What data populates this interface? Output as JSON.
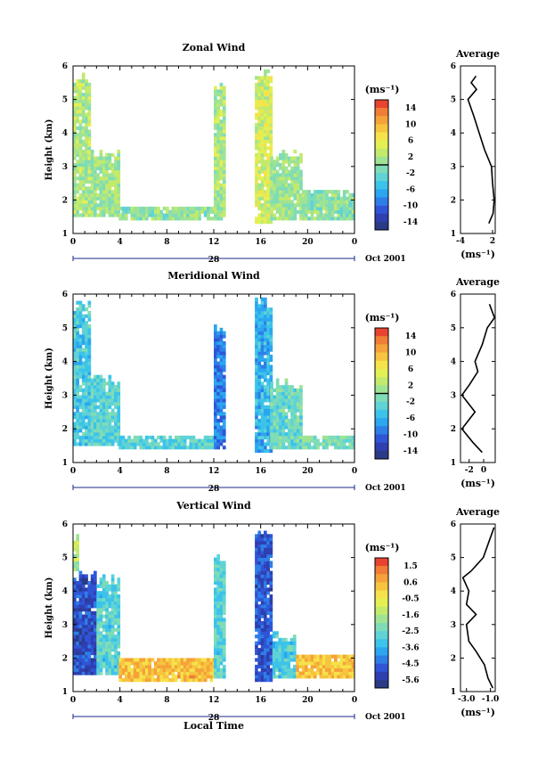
{
  "chart_data": [
    {
      "type": "heatmap",
      "title": "Zonal Wind",
      "ylabel": "Height (km)",
      "ylim": [
        1,
        6
      ],
      "y_ticks": [
        "1",
        "2",
        "3",
        "4",
        "5",
        "6"
      ],
      "xlim_hours": [
        0,
        24
      ],
      "x_ticks": [
        "0",
        "4",
        "8",
        "12",
        "16",
        "20",
        "0"
      ],
      "date_label": "28",
      "month_label": "Oct 2001",
      "colorbar_unit": "(ms⁻¹)",
      "colorbar_ticks": [
        "14",
        "10",
        "6",
        "2",
        "-2",
        "-6",
        "-10",
        "-14"
      ],
      "colorbar_range": [
        -16,
        16
      ],
      "colorbar_marker": 0,
      "echo_regions": [
        {
          "x0": 0.0,
          "x1": 1.5,
          "y_bottom": 1.5,
          "y_top": 5.8,
          "value": 2
        },
        {
          "x0": 1.5,
          "x1": 3.9,
          "y_bottom": 1.5,
          "y_top": 3.5,
          "value": 1
        },
        {
          "x0": 3.9,
          "x1": 12.0,
          "y_bottom": 1.4,
          "y_top": 1.8,
          "value": 0
        },
        {
          "x0": 12.0,
          "x1": 13.0,
          "y_bottom": 1.4,
          "y_top": 5.5,
          "value": 2
        },
        {
          "x0": 15.5,
          "x1": 16.8,
          "y_bottom": 1.3,
          "y_top": 5.9,
          "value": 4
        },
        {
          "x0": 16.8,
          "x1": 19.5,
          "y_bottom": 1.4,
          "y_top": 3.5,
          "value": 1
        },
        {
          "x0": 19.5,
          "x1": 24.0,
          "y_bottom": 1.4,
          "y_top": 2.3,
          "value": 0
        }
      ],
      "average_profile": {
        "title": "Average",
        "xlabel": "(ms⁻¹)",
        "xlim": [
          -4,
          2.5
        ],
        "x_ticks": [
          "-4",
          "2"
        ],
        "ylim": [
          1,
          6
        ],
        "y_ticks": [
          "1",
          "2",
          "3",
          "4",
          "5",
          "6"
        ],
        "height_km": [
          1.3,
          1.6,
          2.0,
          2.5,
          3.0,
          3.5,
          4.0,
          4.5,
          5.0,
          5.3,
          5.5,
          5.7
        ],
        "wind_ms": [
          1.3,
          2.1,
          2.3,
          2.0,
          1.8,
          0.5,
          -0.5,
          -1.5,
          -2.6,
          -1.0,
          -2.0,
          -1.1
        ]
      }
    },
    {
      "type": "heatmap",
      "title": "Meridional Wind",
      "ylabel": "Height (km)",
      "ylim": [
        1,
        6
      ],
      "y_ticks": [
        "1",
        "2",
        "3",
        "4",
        "5",
        "6"
      ],
      "xlim_hours": [
        0,
        24
      ],
      "x_ticks": [
        "0",
        "4",
        "8",
        "12",
        "16",
        "20",
        "0"
      ],
      "date_label": "28",
      "month_label": "Oct 2001",
      "colorbar_unit": "(ms⁻¹)",
      "colorbar_ticks": [
        "14",
        "10",
        "6",
        "2",
        "-2",
        "-6",
        "-10",
        "-14"
      ],
      "colorbar_range": [
        -16,
        16
      ],
      "colorbar_marker": 0,
      "echo_regions": [
        {
          "x0": 0.0,
          "x1": 1.5,
          "y_bottom": 1.5,
          "y_top": 5.8,
          "value": -4
        },
        {
          "x0": 1.5,
          "x1": 3.9,
          "y_bottom": 1.5,
          "y_top": 3.6,
          "value": -3
        },
        {
          "x0": 3.9,
          "x1": 12.0,
          "y_bottom": 1.4,
          "y_top": 1.8,
          "value": -3
        },
        {
          "x0": 12.0,
          "x1": 13.0,
          "y_bottom": 1.4,
          "y_top": 5.1,
          "value": -9
        },
        {
          "x0": 15.5,
          "x1": 16.8,
          "y_bottom": 1.3,
          "y_top": 5.9,
          "value": -6
        },
        {
          "x0": 16.8,
          "x1": 19.5,
          "y_bottom": 1.4,
          "y_top": 3.5,
          "value": -2
        },
        {
          "x0": 19.5,
          "x1": 24.0,
          "y_bottom": 1.4,
          "y_top": 1.8,
          "value": -1
        }
      ],
      "average_profile": {
        "title": "Average",
        "xlabel": "(ms⁻¹)",
        "xlim": [
          -3.2,
          1.6
        ],
        "x_ticks": [
          "-2",
          "0"
        ],
        "ylim": [
          1,
          6
        ],
        "y_ticks": [
          "1",
          "2",
          "3",
          "4",
          "5",
          "6"
        ],
        "height_km": [
          1.3,
          1.6,
          2.0,
          2.5,
          3.0,
          3.3,
          3.7,
          4.0,
          4.5,
          5.0,
          5.3,
          5.7
        ],
        "wind_ms": [
          -0.2,
          -1.5,
          -3.0,
          -1.2,
          -3.0,
          -2.0,
          -0.8,
          -1.2,
          -0.2,
          0.5,
          1.5,
          0.8
        ]
      }
    },
    {
      "type": "heatmap",
      "title": "Vertical Wind",
      "xlabel": "Local Time",
      "ylabel": "Height (km)",
      "ylim": [
        1,
        6
      ],
      "y_ticks": [
        "1",
        "2",
        "3",
        "4",
        "5",
        "6"
      ],
      "xlim_hours": [
        0,
        24
      ],
      "x_ticks": [
        "0",
        "4",
        "8",
        "12",
        "16",
        "20",
        "0"
      ],
      "date_label": "28",
      "month_label": "Oct 2001",
      "colorbar_unit": "(ms⁻¹)",
      "colorbar_ticks": [
        "1.5",
        "0.6",
        "-0.5",
        "-1.6",
        "-2.5",
        "-3.6",
        "-4.5",
        "-5.6"
      ],
      "colorbar_range": [
        -6,
        2
      ],
      "colorbar_marker": null,
      "echo_regions": [
        {
          "x0": 0.0,
          "x1": 0.3,
          "y_bottom": 4.6,
          "y_top": 5.8,
          "value": -1.4
        },
        {
          "x0": 0.0,
          "x1": 2.0,
          "y_bottom": 1.5,
          "y_top": 4.6,
          "value": -5.0
        },
        {
          "x0": 2.0,
          "x1": 3.9,
          "y_bottom": 1.5,
          "y_top": 4.5,
          "value": -2.8
        },
        {
          "x0": 3.9,
          "x1": 12.0,
          "y_bottom": 1.3,
          "y_top": 2.0,
          "value": 0.3
        },
        {
          "x0": 12.0,
          "x1": 13.0,
          "y_bottom": 1.4,
          "y_top": 5.2,
          "value": -2.8
        },
        {
          "x0": 15.5,
          "x1": 17.0,
          "y_bottom": 1.3,
          "y_top": 5.9,
          "value": -4.8
        },
        {
          "x0": 17.0,
          "x1": 19.0,
          "y_bottom": 1.4,
          "y_top": 2.8,
          "value": -3.0
        },
        {
          "x0": 19.0,
          "x1": 24.0,
          "y_bottom": 1.4,
          "y_top": 2.1,
          "value": 0.2
        }
      ],
      "average_profile": {
        "title": "Average",
        "xlabel": "(ms⁻¹)",
        "xlim": [
          -3.5,
          -0.6
        ],
        "x_ticks": [
          "-3.0",
          "-1.0"
        ],
        "ylim": [
          1,
          6
        ],
        "y_ticks": [
          "1",
          "2",
          "3",
          "4",
          "5",
          "6"
        ],
        "height_km": [
          1.1,
          1.4,
          1.8,
          2.2,
          2.5,
          3.0,
          3.3,
          3.6,
          4.0,
          4.4,
          4.6,
          5.0,
          5.5,
          5.9
        ],
        "wind_ms": [
          -0.8,
          -1.2,
          -1.5,
          -2.2,
          -2.8,
          -3.0,
          -2.2,
          -3.0,
          -2.8,
          -3.3,
          -2.6,
          -1.6,
          -1.1,
          -0.7
        ]
      }
    }
  ]
}
